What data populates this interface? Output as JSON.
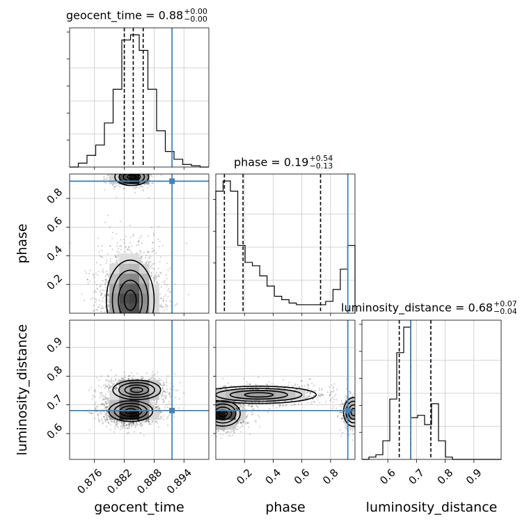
{
  "chart_data": {
    "type": "corner",
    "truth_color": "#4682b4",
    "params": [
      {
        "name": "geocent_time",
        "axis_label": "geocent_time",
        "range": [
          0.871,
          0.899
        ],
        "ticks": [
          0.876,
          0.882,
          0.888,
          0.894
        ],
        "tick_labels": [
          "0.876",
          "0.882",
          "0.888",
          "0.894"
        ],
        "truth": 0.8916,
        "quantiles": [
          0.882,
          0.8838,
          0.8858
        ],
        "title": {
          "label": "geocent_time = 0.88",
          "plus": "+0.00",
          "minus": "−0.00"
        },
        "hist_counts": [
          0,
          3,
          9,
          17,
          34,
          60,
          98,
          102,
          90,
          60,
          28,
          12,
          6,
          2,
          1,
          0
        ]
      },
      {
        "name": "phase",
        "axis_label": "phase",
        "range": [
          0.0,
          0.97
        ],
        "ticks": [
          0.2,
          0.4,
          0.6,
          0.8
        ],
        "tick_labels": [
          "0.2",
          "0.4",
          "0.6",
          "0.8"
        ],
        "truth": 0.92,
        "quantiles": [
          0.06,
          0.19,
          0.73
        ],
        "title": {
          "label": "phase = 0.19",
          "plus": "+0.54",
          "minus": "−0.13"
        },
        "hist_counts": [
          72,
          78,
          72,
          40,
          30,
          28,
          22,
          16,
          10,
          8,
          6,
          5,
          5,
          5,
          5,
          7,
          14,
          26,
          40
        ]
      },
      {
        "name": "luminosity_distance",
        "axis_label": "luminosity_distance",
        "range": [
          0.51,
          0.995
        ],
        "ticks": [
          0.6,
          0.7,
          0.8,
          0.9
        ],
        "tick_labels": [
          "0.6",
          "0.7",
          "0.8",
          "0.9"
        ],
        "truth": 0.68,
        "quantiles": [
          0.64,
          0.68,
          0.75
        ],
        "title": {
          "label": "luminosity_distance = 0.68",
          "plus": "+0.07",
          "minus": "−0.04"
        },
        "hist_counts": [
          0,
          1,
          2,
          8,
          26,
          46,
          57,
          18,
          19,
          15,
          24,
          8,
          1,
          0,
          0,
          0,
          0,
          0,
          0,
          0
        ]
      }
    ],
    "pairs": [
      {
        "x": "geocent_time",
        "y": "phase",
        "modes": [
          {
            "x": 0.8832,
            "y": 0.09,
            "sx": 0.0024,
            "sy": 0.14,
            "w": 0.82
          },
          {
            "x": 0.8835,
            "y": 0.95,
            "sx": 0.0017,
            "sy": 0.03,
            "w": 0.18
          }
        ]
      },
      {
        "x": "geocent_time",
        "y": "luminosity_distance",
        "modes": [
          {
            "x": 0.8833,
            "y": 0.678,
            "sx": 0.0022,
            "sy": 0.018,
            "w": 0.62
          },
          {
            "x": 0.8845,
            "y": 0.752,
            "sx": 0.0024,
            "sy": 0.017,
            "w": 0.38
          }
        ]
      },
      {
        "x": "phase",
        "y": "luminosity_distance",
        "modes": [
          {
            "x": 0.05,
            "y": 0.67,
            "sx": 0.06,
            "sy": 0.022,
            "w": 0.5
          },
          {
            "x": 0.3,
            "y": 0.735,
            "sx": 0.2,
            "sy": 0.015,
            "w": 0.35
          },
          {
            "x": 0.96,
            "y": 0.675,
            "sx": 0.035,
            "sy": 0.025,
            "w": 0.15
          }
        ]
      }
    ]
  }
}
